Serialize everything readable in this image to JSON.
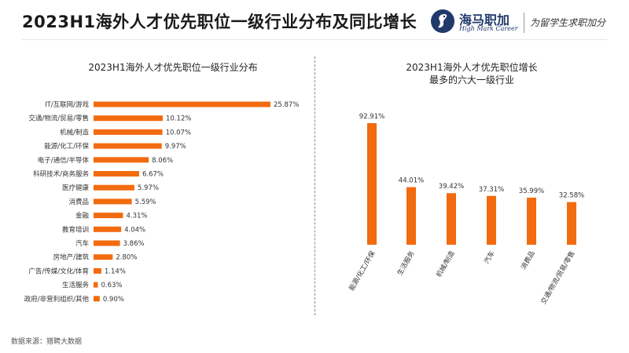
{
  "page": {
    "title": "2023H1海外人才优先职位一级行业分布及同比增长",
    "source_note": "数据来源：猎聘大数据"
  },
  "brand": {
    "logo_icon": "seahorse-logo-icon",
    "name": "海马职加",
    "name_en": "High Mark Career",
    "slogan": "为留学生求职加分",
    "color": "#1f3a6b"
  },
  "colors": {
    "bar": "#f26b0f"
  },
  "chart_data": [
    {
      "type": "bar",
      "orientation": "horizontal",
      "title": "2023H1海外人才优先职位一级行业分布",
      "categories": [
        "IT/互联网/游戏",
        "交通/物流/贸易/零售",
        "机械/制造",
        "能源/化工/环保",
        "电子/通信/半导体",
        "科研技术/商务服务",
        "医疗健康",
        "消费品",
        "金融",
        "教育培训",
        "汽车",
        "房地产/建筑",
        "广告/传媒/文化/体育",
        "生活服务",
        "政府/非营利组织/其他"
      ],
      "values": [
        25.87,
        10.12,
        10.07,
        9.97,
        8.06,
        6.67,
        5.97,
        5.59,
        4.31,
        4.04,
        3.86,
        2.8,
        1.14,
        0.63,
        0.9
      ],
      "labels": [
        "25.87%",
        "10.12%",
        "10.07%",
        "9.97%",
        "8.06%",
        "6.67%",
        "5.97%",
        "5.59%",
        "4.31%",
        "4.04%",
        "3.86%",
        "2.80%",
        "1.14%",
        "0.63%",
        "0.90%"
      ],
      "unit": "%",
      "xlim": [
        0,
        30
      ]
    },
    {
      "type": "bar",
      "orientation": "vertical",
      "title_lines": [
        "2023H1海外人才优先职位增长",
        "最多的六大一级行业"
      ],
      "categories": [
        "能源/化工/环保",
        "生活服务",
        "机械/制造",
        "汽车",
        "消费品",
        "交通/物流/贸易/零售"
      ],
      "values": [
        92.91,
        44.01,
        39.42,
        37.31,
        35.99,
        32.58
      ],
      "labels": [
        "92.91%",
        "44.01%",
        "39.42%",
        "37.31%",
        "35.99%",
        "32.58%"
      ],
      "unit": "%",
      "ylim": [
        0,
        100
      ]
    }
  ]
}
